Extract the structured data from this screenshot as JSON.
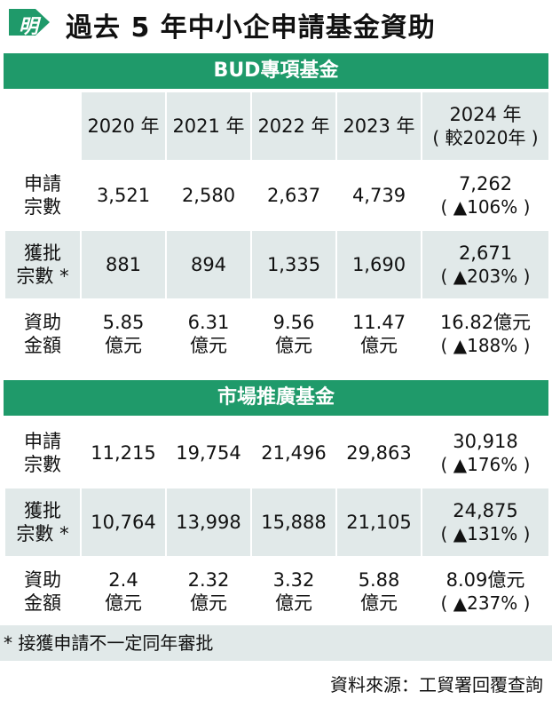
{
  "header": {
    "logo_char": "明",
    "title": "過去 5 年中小企申請基金資助"
  },
  "colors": {
    "accent": "#1f9a6a",
    "row_shade": "#e1e9e9"
  },
  "years": [
    "2020 年",
    "2021 年",
    "2022 年",
    "2023 年",
    "2024 年",
    "( 較2020年 )"
  ],
  "bud": {
    "title": "BUD專項基金",
    "rows": [
      {
        "label1": "申請",
        "label2": "宗數",
        "v2020": "3,521",
        "v2021": "2,580",
        "v2022": "2,637",
        "v2023": "4,739",
        "v2024": "7,262",
        "change": "( ▲106% )"
      },
      {
        "label1": "獲批",
        "label2": "宗數 *",
        "v2020": "881",
        "v2021": "894",
        "v2022": "1,335",
        "v2023": "1,690",
        "v2024": "2,671",
        "change": "( ▲203% )"
      },
      {
        "label1": "資助",
        "label2": "金額",
        "v2020": "5.85",
        "v2020b": "億元",
        "v2021": "6.31",
        "v2021b": "億元",
        "v2022": "9.56",
        "v2022b": "億元",
        "v2023": "11.47",
        "v2023b": "億元",
        "v2024": "16.82億元",
        "change": "( ▲188% )"
      }
    ]
  },
  "market": {
    "title": "市場推廣基金",
    "rows": [
      {
        "label1": "申請",
        "label2": "宗數",
        "v2020": "11,215",
        "v2021": "19,754",
        "v2022": "21,496",
        "v2023": "29,863",
        "v2024": "30,918",
        "change": "( ▲176% )"
      },
      {
        "label1": "獲批",
        "label2": "宗數 *",
        "v2020": "10,764",
        "v2021": "13,998",
        "v2022": "15,888",
        "v2023": "21,105",
        "v2024": "24,875",
        "change": "( ▲131% )"
      },
      {
        "label1": "資助",
        "label2": "金額",
        "v2020": "2.4",
        "v2020b": "億元",
        "v2021": "2.32",
        "v2021b": "億元",
        "v2022": "3.32",
        "v2022b": "億元",
        "v2023": "5.88",
        "v2023b": "億元",
        "v2024": "8.09億元",
        "change": "( ▲237% )"
      }
    ]
  },
  "footnote": "* 接獲申請不一定同年審批",
  "source": "資料來源：工貿署回覆查詢"
}
